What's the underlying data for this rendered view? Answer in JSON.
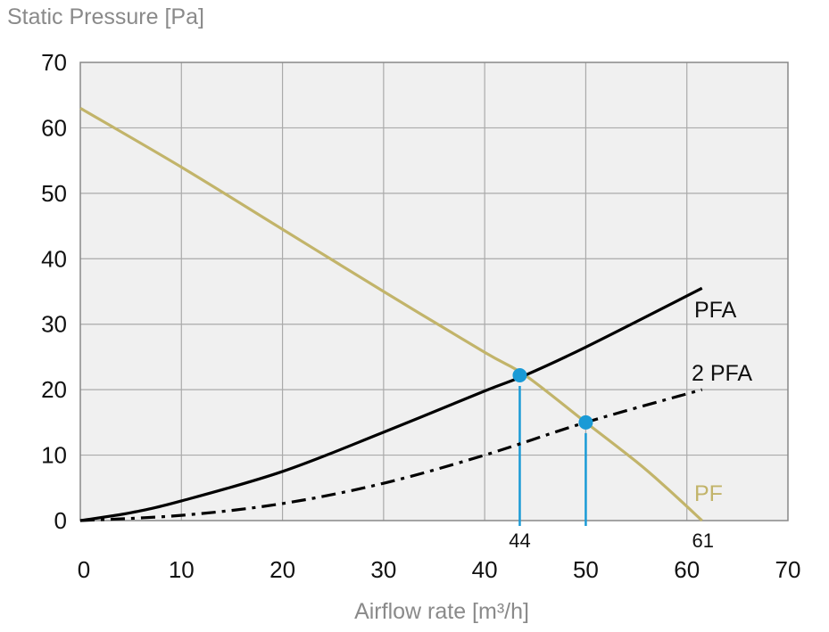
{
  "chart_data": {
    "type": "line",
    "ylabel": "Static Pressure [Pa]",
    "xlabel": "Airflow rate [m³/h]",
    "xlim": [
      0,
      70
    ],
    "ylim": [
      0,
      70
    ],
    "xticks": [
      "0",
      "10",
      "20",
      "30",
      "40",
      "50",
      "60",
      "70"
    ],
    "yticks": [
      "0",
      "10",
      "20",
      "30",
      "40",
      "50",
      "60",
      "70"
    ],
    "grid": true,
    "series": [
      {
        "name": "PF",
        "color": "#c2b46a",
        "style": "solid",
        "x": [
          0,
          10,
          20,
          30,
          40,
          44,
          50,
          55,
          58,
          61.5
        ],
        "y": [
          63,
          54,
          44.5,
          35,
          25.7,
          22.2,
          15,
          9,
          5,
          0
        ]
      },
      {
        "name": "PFA",
        "color": "#000000",
        "style": "solid",
        "x": [
          0,
          5,
          10,
          20,
          30,
          40,
          44,
          50,
          61.5
        ],
        "y": [
          0,
          1.2,
          3,
          7.5,
          13.5,
          19.8,
          22.2,
          26.5,
          35.5
        ]
      },
      {
        "name": "2 PFA",
        "color": "#000000",
        "style": "dash-dot",
        "x": [
          0,
          10,
          20,
          30,
          40,
          50,
          61.5
        ],
        "y": [
          0,
          0.8,
          2.6,
          5.7,
          10,
          15,
          20
        ]
      }
    ],
    "operating_points": [
      {
        "x": 44,
        "y": 22.2,
        "label": "44"
      },
      {
        "x": 50,
        "y": 15,
        "label": ""
      }
    ],
    "annotations": [
      {
        "x": 61.5,
        "label": "61"
      }
    ],
    "point_color": "#1a9ad6"
  }
}
